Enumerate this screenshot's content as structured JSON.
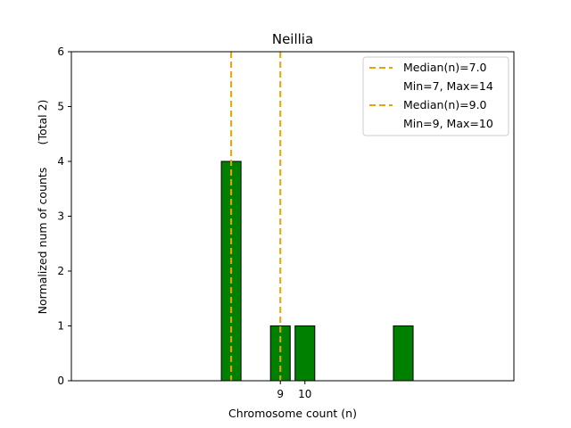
{
  "chart_data": {
    "type": "bar",
    "title": "Neillia",
    "xlabel": "Chromosome count (n)",
    "ylabel": "Normalized num of counts",
    "ylabel_secondary": "(Total 2)",
    "xlim": [
      0.5,
      18.5
    ],
    "ylim": [
      0,
      6
    ],
    "x_ticks": [
      9,
      10
    ],
    "y_ticks": [
      0,
      1,
      2,
      3,
      4,
      5,
      6
    ],
    "bars": [
      {
        "x": 7,
        "value": 4
      },
      {
        "x": 9,
        "value": 1
      },
      {
        "x": 10,
        "value": 1
      },
      {
        "x": 14,
        "value": 1
      }
    ],
    "bar_color": "#008000",
    "bar_edge_color": "#000000",
    "median_lines": [
      {
        "x": 7.0,
        "label": "Median(n)=7.0",
        "range_label": "Min=7, Max=14",
        "color": "#e8a500"
      },
      {
        "x": 9.0,
        "label": "Median(n)=9.0",
        "range_label": "Min=9, Max=10",
        "color": "#e8a500"
      }
    ],
    "legend_position": "top-right",
    "grid": false
  }
}
